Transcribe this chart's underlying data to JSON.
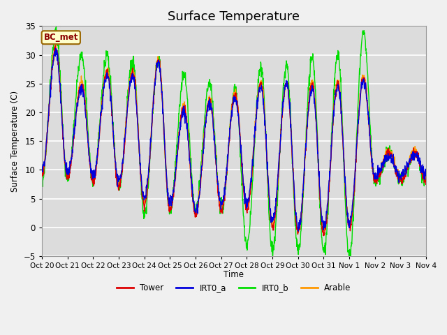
{
  "title": "Surface Temperature",
  "ylabel": "Surface Temperature (C)",
  "xlabel": "Time",
  "annotation": "BC_met",
  "ylim": [
    -5,
    35
  ],
  "yticks": [
    -5,
    0,
    5,
    10,
    15,
    20,
    25,
    30,
    35
  ],
  "xtick_labels": [
    "Oct 20",
    "Oct 21",
    "Oct 22",
    "Oct 23",
    "Oct 24",
    "Oct 25",
    "Oct 26",
    "Oct 27",
    "Oct 28",
    "Oct 29",
    "Oct 30",
    "Oct 31",
    "Nov 1",
    "Nov 2",
    "Nov 3",
    "Nov 4"
  ],
  "colors": {
    "Tower": "#dd0000",
    "IRT0_a": "#0000dd",
    "IRT0_b": "#00dd00",
    "Arable": "#ff9900"
  },
  "bg_color": "#dcdcdc",
  "fig_color": "#f0f0f0",
  "title_fontsize": 13,
  "n_days": 15
}
